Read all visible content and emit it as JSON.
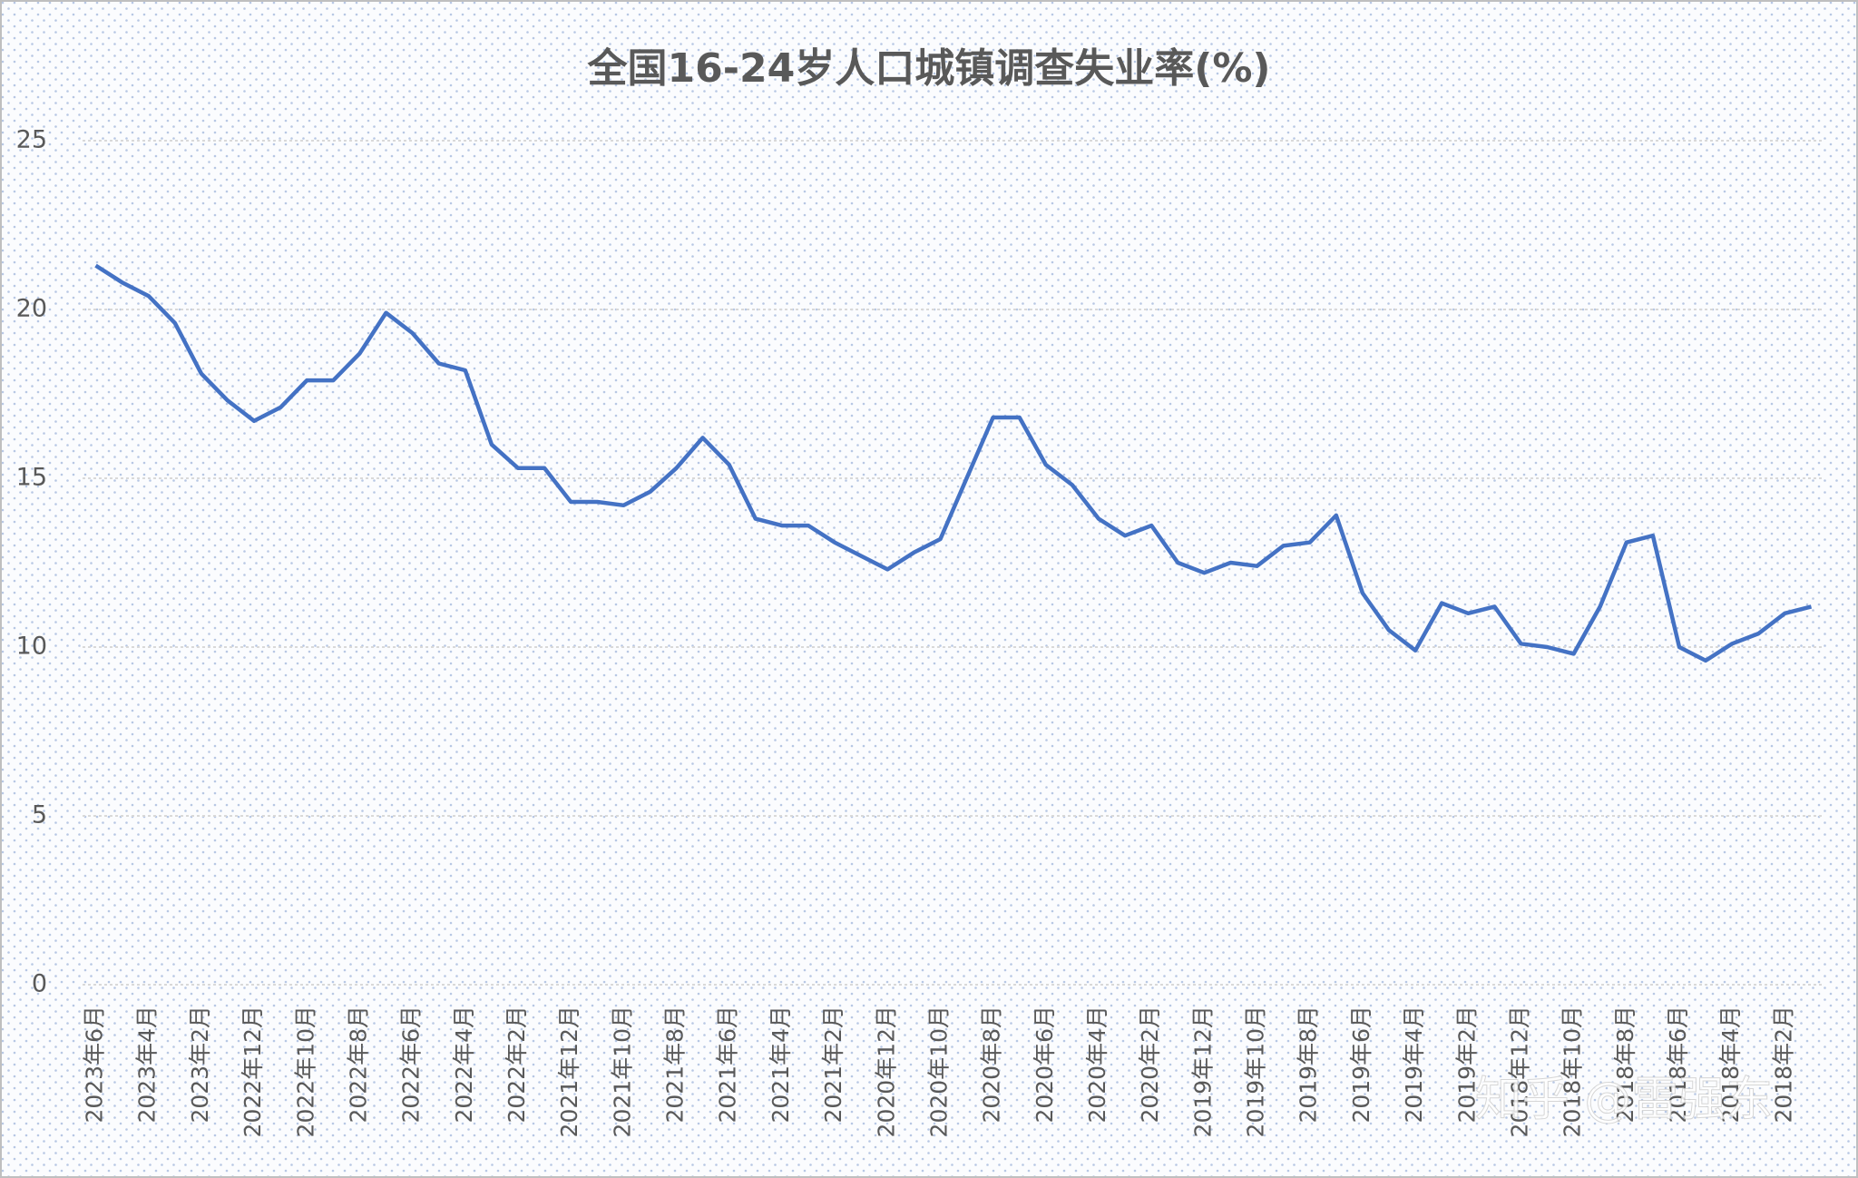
{
  "chart_data": {
    "type": "line",
    "title": "全国16-24岁人口城镇调查失业率(%)",
    "categories": [
      "2023年6月",
      null,
      "2023年4月",
      null,
      "2023年2月",
      null,
      "2022年12月",
      null,
      "2022年10月",
      null,
      "2022年8月",
      null,
      "2022年6月",
      null,
      "2022年4月",
      null,
      "2022年2月",
      null,
      "2021年12月",
      null,
      "2021年10月",
      null,
      "2021年8月",
      null,
      "2021年6月",
      null,
      "2021年4月",
      null,
      "2021年2月",
      null,
      "2020年12月",
      null,
      "2020年10月",
      null,
      "2020年8月",
      null,
      "2020年6月",
      null,
      "2020年4月",
      null,
      "2020年2月",
      null,
      "2019年12月",
      null,
      "2019年10月",
      null,
      "2019年8月",
      null,
      "2019年6月",
      null,
      "2019年4月",
      null,
      "2019年2月",
      null,
      "2018年12月",
      null,
      "2018年10月",
      null,
      "2018年8月",
      null,
      "2018年6月",
      null,
      "2018年4月",
      null,
      "2018年2月",
      null
    ],
    "series": [
      {
        "name": "全国16-24岁人口城镇调查失业率",
        "color": "#4472c4",
        "values": [
          21.3,
          20.8,
          20.4,
          19.6,
          18.1,
          17.3,
          16.7,
          17.1,
          17.9,
          17.9,
          18.7,
          19.9,
          19.3,
          18.4,
          18.2,
          16.0,
          15.3,
          15.3,
          14.3,
          14.3,
          14.2,
          14.6,
          15.3,
          16.2,
          15.4,
          13.8,
          13.6,
          13.6,
          13.1,
          12.7,
          12.3,
          12.8,
          13.2,
          15.0,
          16.8,
          16.8,
          15.4,
          14.8,
          13.8,
          13.3,
          13.6,
          12.5,
          12.2,
          12.5,
          12.4,
          13.0,
          13.1,
          13.9,
          11.6,
          10.5,
          9.9,
          11.3,
          11.0,
          11.2,
          10.1,
          10.0,
          9.8,
          11.2,
          13.1,
          13.3,
          10.0,
          9.6,
          10.1,
          10.4,
          11.0,
          11.2
        ]
      }
    ],
    "ylim": [
      0,
      25
    ],
    "yticks": [
      0,
      5,
      10,
      15,
      20,
      25
    ],
    "grid": true,
    "watermark": "知乎 @雷强东"
  }
}
